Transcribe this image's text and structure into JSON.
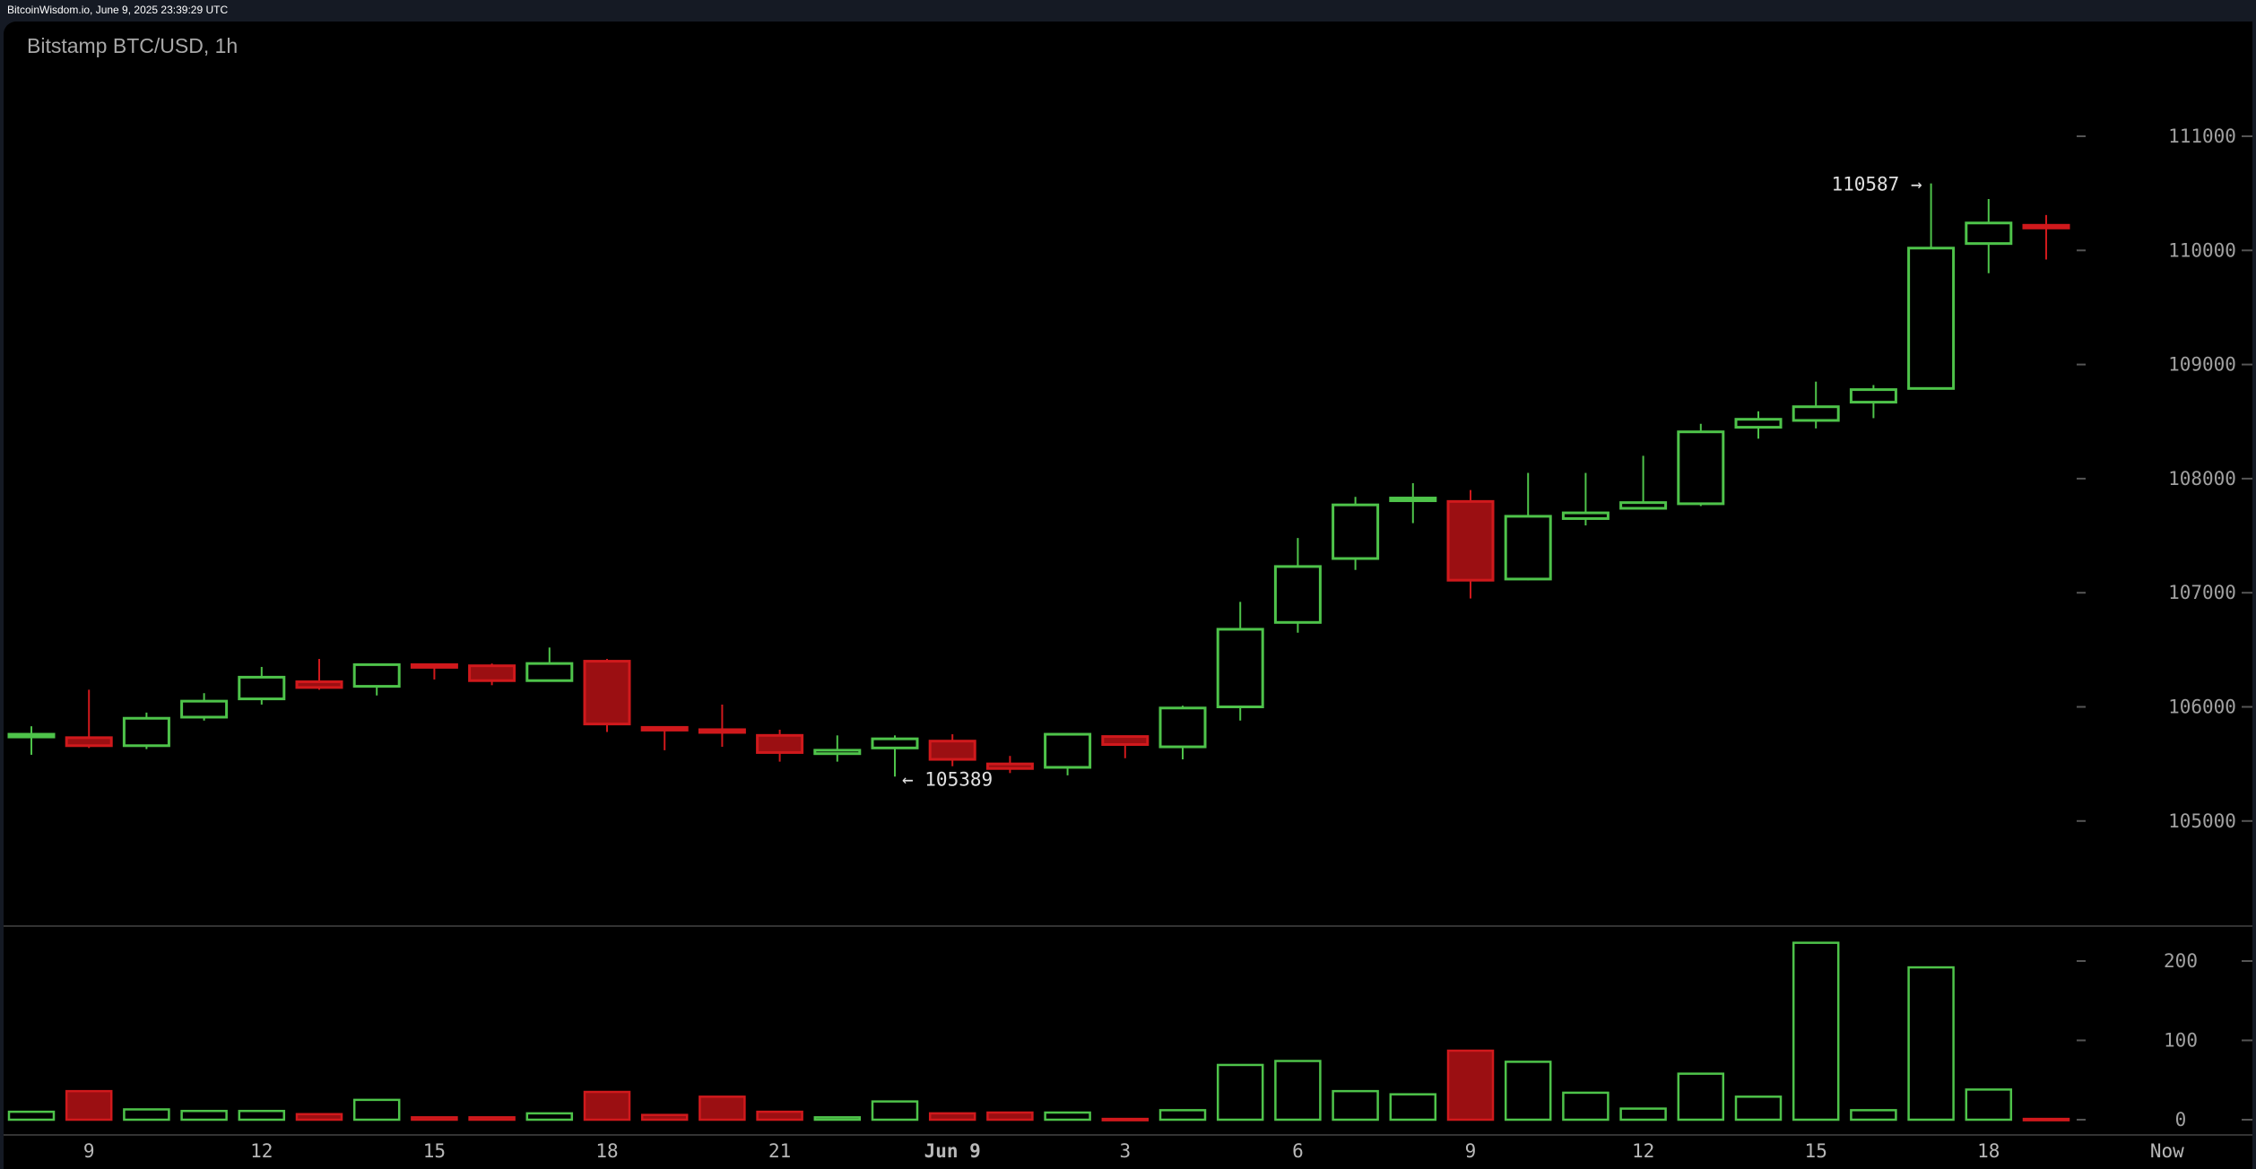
{
  "header": {
    "source": "BitcoinWisdom.io, June 9, 2025 23:39:29 UTC"
  },
  "chart_data": {
    "type": "candlestick",
    "title": "Bitstamp BTC/USD, 1h",
    "colors": {
      "up": "#4ec34a",
      "down_fill": "#9b0f12",
      "down_border": "#d0191c",
      "background": "#000000"
    },
    "price_ticks": [
      111000,
      110000,
      109000,
      108000,
      107000,
      106000,
      105000
    ],
    "price_range": [
      104100,
      111700
    ],
    "volume_ticks": [
      200,
      100,
      0
    ],
    "volume_range": [
      0,
      240
    ],
    "x_ticks": [
      {
        "index": 1,
        "label": "9"
      },
      {
        "index": 4,
        "label": "12"
      },
      {
        "index": 7,
        "label": "15"
      },
      {
        "index": 10,
        "label": "18"
      },
      {
        "index": 13,
        "label": "21"
      },
      {
        "index": 16,
        "label": "Jun 9"
      },
      {
        "index": 19,
        "label": "3"
      },
      {
        "index": 22,
        "label": "6"
      },
      {
        "index": 25,
        "label": "9"
      },
      {
        "index": 28,
        "label": "12"
      },
      {
        "index": 31,
        "label": "15"
      },
      {
        "index": 34,
        "label": "18"
      },
      {
        "index": 37.1,
        "label": "Now"
      }
    ],
    "annotations": {
      "high": {
        "index": 33,
        "value": 110587,
        "label": "110587 →"
      },
      "low": {
        "index": 15,
        "value": 105389,
        "label": "← 105389"
      }
    },
    "candles": [
      {
        "o": 105750,
        "h": 105830,
        "l": 105580,
        "c": 105760,
        "v": 10
      },
      {
        "o": 105730,
        "h": 106150,
        "l": 105640,
        "c": 105660,
        "v": 36
      },
      {
        "o": 105660,
        "h": 105950,
        "l": 105630,
        "c": 105900,
        "v": 13
      },
      {
        "o": 105910,
        "h": 106120,
        "l": 105880,
        "c": 106050,
        "v": 11
      },
      {
        "o": 106070,
        "h": 106350,
        "l": 106020,
        "c": 106260,
        "v": 11
      },
      {
        "o": 106220,
        "h": 106420,
        "l": 106150,
        "c": 106170,
        "v": 7
      },
      {
        "o": 106180,
        "h": 106370,
        "l": 106100,
        "c": 106370,
        "v": 25
      },
      {
        "o": 106370,
        "h": 106380,
        "l": 106240,
        "c": 106350,
        "v": 3
      },
      {
        "o": 106360,
        "h": 106380,
        "l": 106190,
        "c": 106230,
        "v": 3
      },
      {
        "o": 106230,
        "h": 106520,
        "l": 106230,
        "c": 106380,
        "v": 8
      },
      {
        "o": 106400,
        "h": 106420,
        "l": 105780,
        "c": 105850,
        "v": 35
      },
      {
        "o": 105820,
        "h": 105830,
        "l": 105620,
        "c": 105800,
        "v": 6
      },
      {
        "o": 105800,
        "h": 106020,
        "l": 105650,
        "c": 105790,
        "v": 29
      },
      {
        "o": 105750,
        "h": 105800,
        "l": 105520,
        "c": 105600,
        "v": 10
      },
      {
        "o": 105590,
        "h": 105750,
        "l": 105520,
        "c": 105620,
        "v": 3
      },
      {
        "o": 105640,
        "h": 105750,
        "l": 105389,
        "c": 105720,
        "v": 23
      },
      {
        "o": 105700,
        "h": 105760,
        "l": 105480,
        "c": 105540,
        "v": 8
      },
      {
        "o": 105500,
        "h": 105570,
        "l": 105420,
        "c": 105460,
        "v": 9
      },
      {
        "o": 105470,
        "h": 105760,
        "l": 105400,
        "c": 105760,
        "v": 9
      },
      {
        "o": 105740,
        "h": 105740,
        "l": 105550,
        "c": 105670,
        "v": 1
      },
      {
        "o": 105650,
        "h": 106010,
        "l": 105540,
        "c": 105990,
        "v": 12
      },
      {
        "o": 106000,
        "h": 106920,
        "l": 105880,
        "c": 106680,
        "v": 69
      },
      {
        "o": 106740,
        "h": 107480,
        "l": 106650,
        "c": 107230,
        "v": 74
      },
      {
        "o": 107300,
        "h": 107840,
        "l": 107200,
        "c": 107770,
        "v": 36
      },
      {
        "o": 107810,
        "h": 107960,
        "l": 107610,
        "c": 107830,
        "v": 32
      },
      {
        "o": 107800,
        "h": 107900,
        "l": 106950,
        "c": 107110,
        "v": 87
      },
      {
        "o": 107120,
        "h": 108050,
        "l": 107110,
        "c": 107670,
        "v": 73
      },
      {
        "o": 107650,
        "h": 108050,
        "l": 107590,
        "c": 107700,
        "v": 34
      },
      {
        "o": 107740,
        "h": 108200,
        "l": 107740,
        "c": 107790,
        "v": 14
      },
      {
        "o": 107780,
        "h": 108480,
        "l": 107760,
        "c": 108410,
        "v": 58
      },
      {
        "o": 108450,
        "h": 108590,
        "l": 108350,
        "c": 108520,
        "v": 29
      },
      {
        "o": 108510,
        "h": 108850,
        "l": 108440,
        "c": 108630,
        "v": 223
      },
      {
        "o": 108670,
        "h": 108820,
        "l": 108530,
        "c": 108780,
        "v": 12
      },
      {
        "o": 108790,
        "h": 110587,
        "l": 108790,
        "c": 110020,
        "v": 192
      },
      {
        "o": 110060,
        "h": 110450,
        "l": 109800,
        "c": 110240,
        "v": 38
      },
      {
        "o": 110220,
        "h": 110310,
        "l": 109920,
        "c": 110200,
        "v": 1
      }
    ]
  }
}
